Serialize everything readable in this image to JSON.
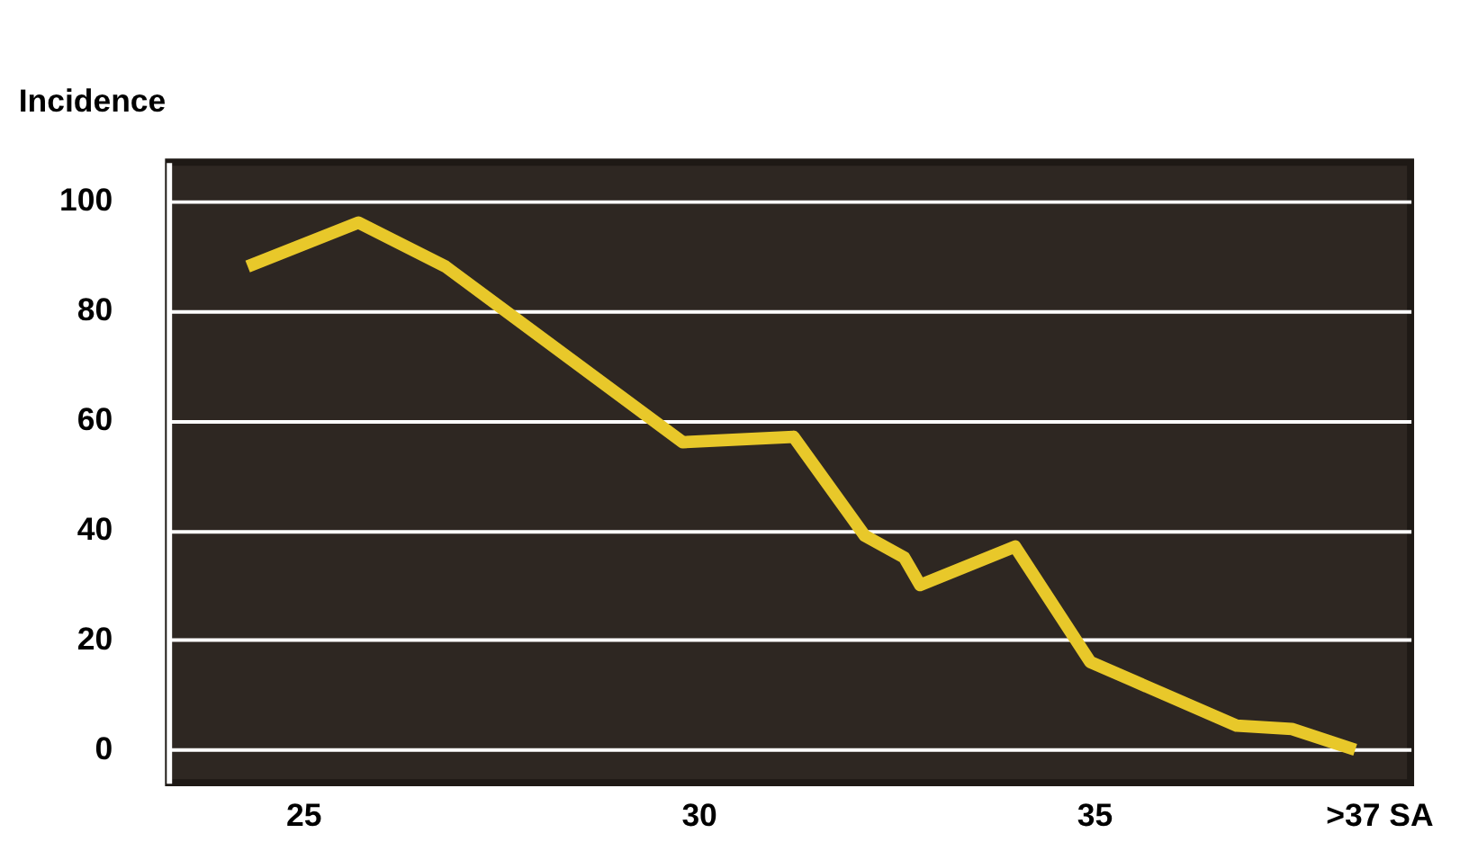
{
  "chart_data": {
    "type": "line",
    "ylabel": "Incidence",
    "series": [
      {
        "color": "#e8c82a",
        "x": [
          24.3,
          25.7,
          26.8,
          29.8,
          31.2,
          32.1,
          32.6,
          32.8,
          34.0,
          34.95,
          36.8,
          37.5,
          38.3
        ],
        "values": [
          88,
          96,
          88,
          56,
          57,
          39,
          35,
          30,
          37,
          16,
          4.4,
          3.8,
          0
        ]
      }
    ],
    "xlim": [
      23.3,
      39.0
    ],
    "xticks": [
      25,
      30,
      35,
      {
        "value": 38.6,
        "label": ">37 SA"
      }
    ],
    "ylim": [
      -6,
      107
    ],
    "yticks": [
      0,
      20,
      40,
      60,
      80,
      100
    ],
    "grid": "y",
    "marker": "none",
    "line_style": "solid",
    "legend": false
  }
}
